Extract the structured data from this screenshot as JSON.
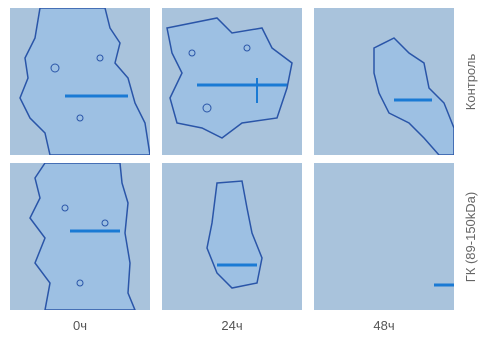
{
  "rows": [
    "Контроль",
    "ГК (89-150kDa)"
  ],
  "columns": [
    "0ч",
    "24ч",
    "48ч"
  ],
  "colors": {
    "cell_background": "#a9c3dc",
    "wound_region": "#9dc0e3",
    "outline": "#2a55a8",
    "scale_bar": "#1a7ad4",
    "label_text": "#666666"
  }
}
